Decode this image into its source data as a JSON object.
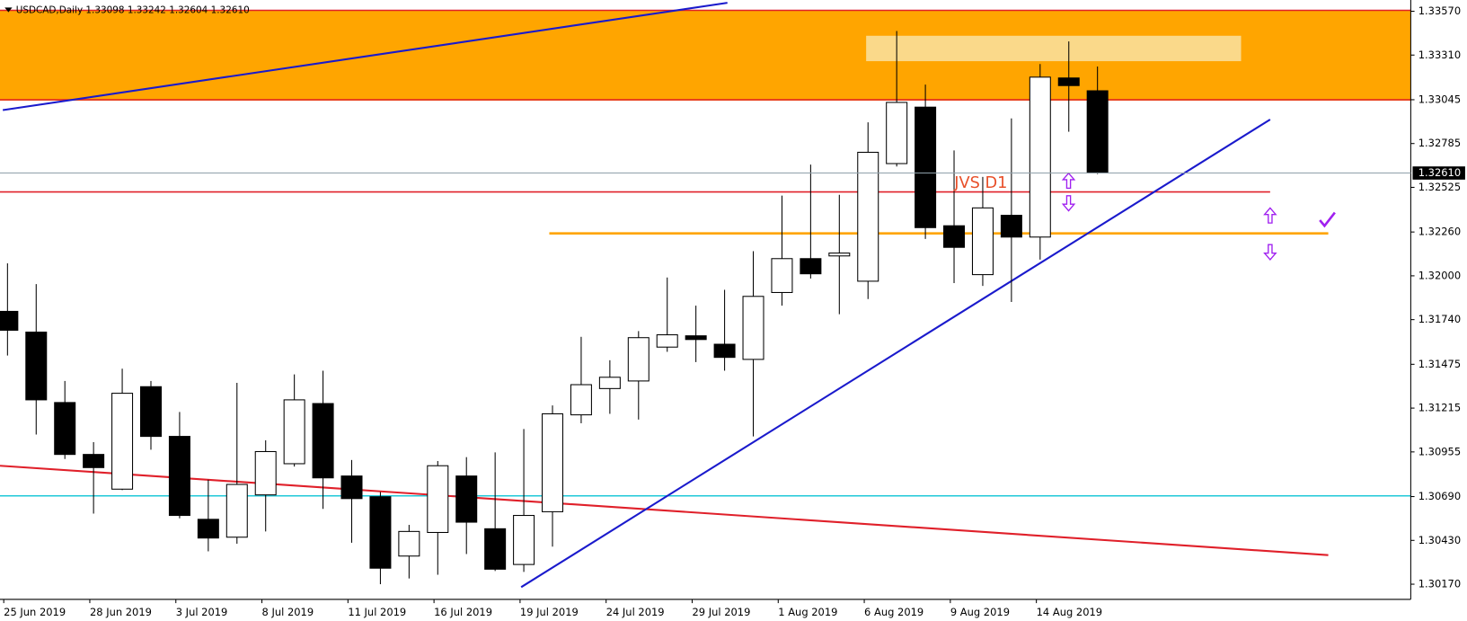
{
  "chart_data": {
    "type": "candlestick",
    "title": "USDCAD,Daily  1.33098 1.33242 1.32604 1.32610",
    "annotation": "JVS D1",
    "categories": [
      "25 Jun 2019",
      null,
      null,
      "28 Jun 2019",
      null,
      null,
      "3 Jul 2019",
      null,
      null,
      "8 Jul 2019",
      null,
      null,
      "11 Jul 2019",
      null,
      null,
      "16 Jul 2019",
      null,
      null,
      "19 Jul 2019",
      null,
      null,
      "24 Jul 2019",
      null,
      null,
      "29 Jul 2019",
      null,
      null,
      "1 Aug 2019",
      null,
      null,
      "6 Aug 2019",
      null,
      null,
      "9 Aug 2019",
      null,
      null,
      "14 Aug 2019",
      null,
      null
    ],
    "open": [
      1.31789,
      1.31666,
      1.31248,
      1.3094,
      1.30734,
      1.31342,
      1.31047,
      1.30555,
      1.30449,
      1.307,
      1.30885,
      1.31242,
      1.30812,
      1.30689,
      1.30337,
      1.30477,
      1.30812,
      1.30499,
      1.30287,
      1.306,
      1.31175,
      1.31331,
      1.31376,
      1.31577,
      1.31644,
      1.31594,
      1.31504,
      1.31901,
      1.32102,
      1.32118,
      1.31968,
      1.32666,
      1.33001,
      1.32297,
      1.32007,
      1.32359,
      1.3223,
      1.33174,
      1.33098
    ],
    "high": [
      1.32074,
      1.31951,
      1.31376,
      1.31013,
      1.31449,
      1.31376,
      1.31192,
      1.3079,
      1.31365,
      1.31024,
      1.31415,
      1.31437,
      1.30907,
      1.30717,
      1.30522,
      1.30901,
      1.30924,
      1.30952,
      1.31091,
      1.31231,
      1.31638,
      1.31499,
      1.31672,
      1.3199,
      1.31823,
      1.31917,
      1.32146,
      1.32476,
      1.3266,
      1.32481,
      1.32911,
      1.33453,
      1.33135,
      1.32744,
      1.32587,
      1.32934,
      1.33257,
      1.33391,
      1.33242
    ],
    "low": [
      1.31527,
      1.31058,
      1.30913,
      1.30589,
      1.30728,
      1.30968,
      1.30561,
      1.30365,
      1.3041,
      1.30483,
      1.30868,
      1.30617,
      1.30416,
      1.3017,
      1.30204,
      1.30226,
      1.30349,
      1.30248,
      1.30243,
      1.30393,
      1.31125,
      1.31181,
      1.31147,
      1.31549,
      1.31488,
      1.31437,
      1.31047,
      1.31823,
      1.31984,
      1.31772,
      1.31862,
      1.32649,
      1.32219,
      1.31957,
      1.3194,
      1.31845,
      1.32096,
      1.32855,
      1.32604
    ],
    "close": [
      1.31677,
      1.31264,
      1.3094,
      1.30862,
      1.31303,
      1.31047,
      1.30578,
      1.30444,
      1.30762,
      1.30957,
      1.31264,
      1.30801,
      1.30678,
      1.30265,
      1.30483,
      1.30873,
      1.30538,
      1.30259,
      1.30578,
      1.31181,
      1.31354,
      1.31398,
      1.31633,
      1.3165,
      1.31622,
      1.31516,
      1.31878,
      1.32102,
      1.32012,
      1.32135,
      1.32733,
      1.33029,
      1.32286,
      1.32169,
      1.32403,
      1.3223,
      1.33179,
      1.33129,
      1.3261
    ],
    "colors": {
      "up": "#ffffff",
      "down": "#000000"
    },
    "current_price": {
      "value": 1.3261,
      "label": "1.32610"
    },
    "ylim": [
      1.3008,
      1.3362
    ],
    "yticks": [
      {
        "value": 1.3357,
        "label": "1.33570"
      },
      {
        "value": 1.3331,
        "label": "1.33310"
      },
      1.33045,
      1.32785,
      1.32525,
      {
        "value": 1.3226,
        "label": "1.32260"
      },
      {
        "value": 1.32,
        "label": "1.32000"
      },
      {
        "value": 1.3174,
        "label": "1.31740"
      },
      1.31475,
      1.31215,
      1.30955,
      {
        "value": 1.3069,
        "label": "1.30690"
      },
      {
        "value": 1.3043,
        "label": "1.30430"
      },
      {
        "value": 1.3017,
        "label": "1.30170"
      }
    ]
  }
}
